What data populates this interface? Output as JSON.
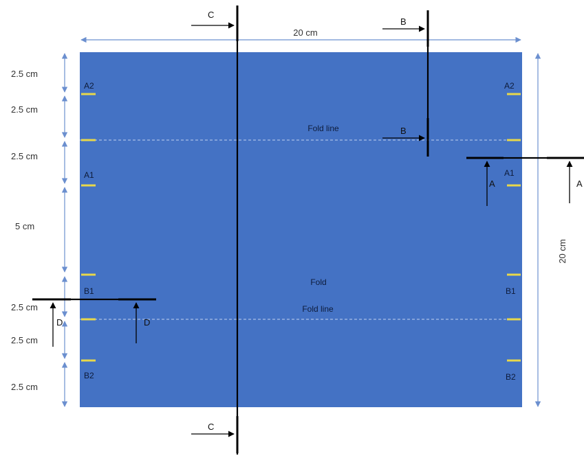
{
  "colors": {
    "sheet": "#4472c4",
    "dimension": "#6b8fcf",
    "marker": "#e8d84a",
    "section": "#000000",
    "fold": "#a9bfe6"
  },
  "dimensions": {
    "width": "20 cm",
    "height": "20 cm",
    "segments": [
      "2.5 cm",
      "2.5 cm",
      "2.5 cm",
      "5 cm",
      "2.5 cm",
      "2.5 cm",
      "2.5 cm"
    ]
  },
  "markers": {
    "a2": "A2",
    "a1": "A1",
    "b1": "B1",
    "b2": "B2"
  },
  "fold_lines": {
    "upper": "Fold line",
    "middle": "Fold",
    "lower": "Fold line"
  },
  "sections": {
    "c": "C",
    "b": "B",
    "a": "A",
    "d": "D"
  }
}
